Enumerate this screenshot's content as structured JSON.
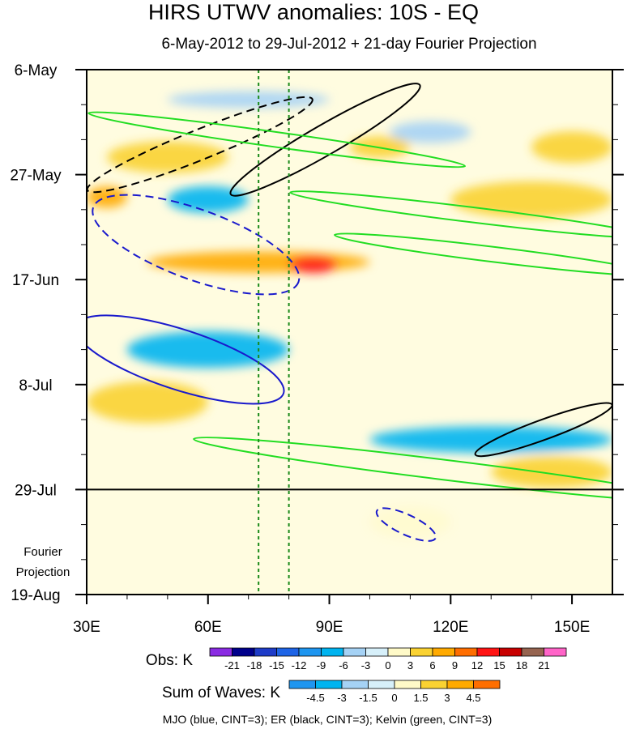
{
  "chart_data": {
    "type": "heatmap",
    "title": "HIRS UTWV anomalies: 10S - EQ",
    "subtitle": "6-May-2012 to 29-Jul-2012 + 21-day Fourier Projection",
    "x_axis": {
      "range": [
        30,
        160
      ],
      "ticks": [
        {
          "value": 30,
          "label": "30E"
        },
        {
          "value": 60,
          "label": "60E"
        },
        {
          "value": 90,
          "label": "90E"
        },
        {
          "value": 120,
          "label": "120E"
        },
        {
          "value": 150,
          "label": "150E"
        }
      ]
    },
    "y_axis": {
      "range_days": [
        0,
        105
      ],
      "direction": "time increases downward",
      "ticks": [
        {
          "day": 0,
          "label": "6-May"
        },
        {
          "day": 21,
          "label": "27-May"
        },
        {
          "day": 42,
          "label": "17-Jun"
        },
        {
          "day": 63,
          "label": "8-Jul"
        },
        {
          "day": 84,
          "label": "29-Jul"
        },
        {
          "day": 105,
          "label": "19-Aug"
        }
      ]
    },
    "end_of_observations_day": 84,
    "projection_label_line1": "Fourier",
    "projection_label_line2": "Projection",
    "reference_longitudes": [
      72.5,
      80
    ],
    "obs_colorbar": {
      "label": "Obs: K",
      "levels": [
        "-21",
        "-18",
        "-15",
        "-12",
        "-9",
        "-6",
        "-3",
        "0",
        "3",
        "6",
        "9",
        "12",
        "15",
        "18",
        "21"
      ],
      "colors": [
        "#8a2be2",
        "#00008b",
        "#1e3cc8",
        "#1e64e6",
        "#1e96f0",
        "#00b4f0",
        "#a5d2f5",
        "#d7f0fa",
        "#fffac8",
        "#fad232",
        "#ffaa00",
        "#ff6e00",
        "#ff1414",
        "#c80000",
        "#966450",
        "#ff64c8"
      ]
    },
    "waves_colorbar": {
      "label": "Sum of Waves: K",
      "levels": [
        "-4.5",
        "-3",
        "-1.5",
        "0",
        "1.5",
        "3",
        "4.5"
      ],
      "colors": [
        "#1e96f0",
        "#00b4f0",
        "#a5d2f5",
        "#d7f0fa",
        "#fffac8",
        "#fad232",
        "#ffaa00",
        "#ff6e00"
      ]
    },
    "legend_note": "MJO (blue, CINT=3); ER (black, CINT=3); Kelvin (green, CINT=3)",
    "anomaly_features": [
      {
        "lon": [
          50,
          90
        ],
        "day": [
          5,
          7
        ],
        "anom": -4
      },
      {
        "lon": [
          35,
          65
        ],
        "day": [
          15,
          20
        ],
        "anom": 5
      },
      {
        "lon": [
          95,
          110
        ],
        "day": [
          14,
          17
        ],
        "anom": 5
      },
      {
        "lon": [
          140,
          160
        ],
        "day": [
          13,
          18
        ],
        "anom": 4
      },
      {
        "lon": [
          105,
          125
        ],
        "day": [
          11,
          14
        ],
        "anom": -3
      },
      {
        "lon": [
          30,
          40
        ],
        "day": [
          24,
          27
        ],
        "anom": 7
      },
      {
        "lon": [
          50,
          70
        ],
        "day": [
          24,
          28
        ],
        "anom": -6
      },
      {
        "lon": [
          120,
          160
        ],
        "day": [
          23,
          29
        ],
        "anom": 6
      },
      {
        "lon": [
          45,
          100
        ],
        "day": [
          37,
          40
        ],
        "anom": 8
      },
      {
        "lon": [
          80,
          92
        ],
        "day": [
          38,
          40
        ],
        "anom": 14
      },
      {
        "lon": [
          40,
          80
        ],
        "day": [
          53,
          59
        ],
        "anom": -6
      },
      {
        "lon": [
          30,
          60
        ],
        "day": [
          63,
          70
        ],
        "anom": 6
      },
      {
        "lon": [
          100,
          160
        ],
        "day": [
          72,
          76
        ],
        "anom": -6
      },
      {
        "lon": [
          130,
          160
        ],
        "day": [
          78,
          83
        ],
        "anom": 5
      },
      {
        "lon": [
          100,
          120
        ],
        "day": [
          88,
          93
        ],
        "anom": 3
      }
    ],
    "wave_contours": [
      {
        "wave": "MJO",
        "color": "blue",
        "sign": "negative",
        "center": [
          57,
          35
        ],
        "radii": [
          27,
          7
        ],
        "tilt_deg": 20
      },
      {
        "wave": "MJO",
        "color": "blue",
        "sign": "positive",
        "center": [
          53,
          58
        ],
        "radii": [
          27,
          6
        ],
        "tilt_deg": 18
      },
      {
        "wave": "MJO",
        "color": "blue",
        "sign": "negative",
        "center": [
          109,
          91
        ],
        "radii": [
          8,
          2
        ],
        "tilt_deg": 25
      },
      {
        "wave": "ER",
        "color": "black",
        "sign": "negative",
        "center": [
          58,
          15
        ],
        "radii": [
          30,
          3
        ],
        "tilt_deg": -22
      },
      {
        "wave": "ER",
        "color": "black",
        "sign": "positive",
        "center": [
          89,
          14
        ],
        "radii": [
          27,
          3
        ],
        "tilt_deg": -30
      },
      {
        "wave": "ER",
        "color": "black",
        "sign": "positive",
        "center": [
          143,
          72
        ],
        "radii": [
          18,
          2
        ],
        "tilt_deg": -20
      },
      {
        "wave": "Kelvin",
        "color": "green",
        "sign": "positive",
        "center": [
          77,
          14
        ],
        "radii": [
          47,
          1.5
        ],
        "tilt_deg": 8
      },
      {
        "wave": "Kelvin",
        "color": "green",
        "sign": "positive",
        "center": [
          125,
          29
        ],
        "radii": [
          45,
          1.5
        ],
        "tilt_deg": 7
      },
      {
        "wave": "Kelvin",
        "color": "green",
        "sign": "positive",
        "center": [
          131,
          37
        ],
        "radii": [
          40,
          1.5
        ],
        "tilt_deg": 7
      },
      {
        "wave": "Kelvin",
        "color": "green",
        "sign": "positive",
        "center": [
          118,
          80
        ],
        "radii": [
          62,
          2
        ],
        "tilt_deg": 7
      }
    ]
  }
}
